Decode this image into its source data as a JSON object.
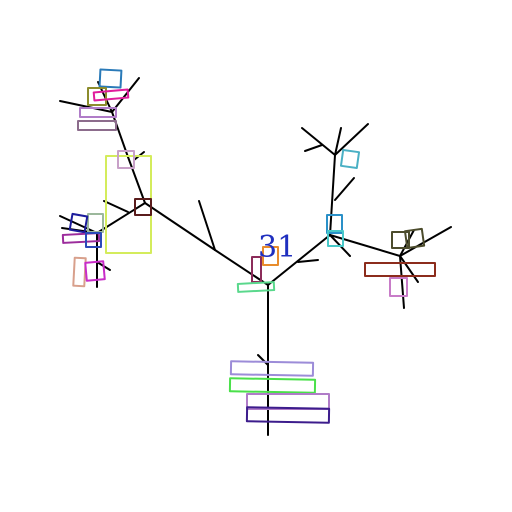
{
  "label": {
    "text": "31",
    "color": "#1f2fbf"
  },
  "colors": {
    "branch": "#000000",
    "lime": "#d4ec5c",
    "maroon": "#5a1c1c",
    "blue": "#2a7ab8",
    "teal": "#4ab0c4",
    "cyan": "#48c8c8",
    "magenta": "#e01c9c",
    "olive": "#8c8c2c",
    "mauve": "#8c6c8c",
    "lilac": "#c8a0c8",
    "navy": "#1c1c9c",
    "sage": "#9cb89c",
    "purple": "#9c2c9c",
    "violet": "#c82cc8",
    "salmon": "#d8a08c",
    "mint": "#5ad88c",
    "wine": "#8c2c5a",
    "orange": "#e88c2c",
    "lavender": "#9c8cd8",
    "green": "#4ae04a",
    "orchid": "#b07cc8",
    "indigo": "#3c1c8c",
    "darkolive": "#4c4c2c",
    "brown": "#8c2c1c",
    "pink": "#c87cc8"
  }
}
